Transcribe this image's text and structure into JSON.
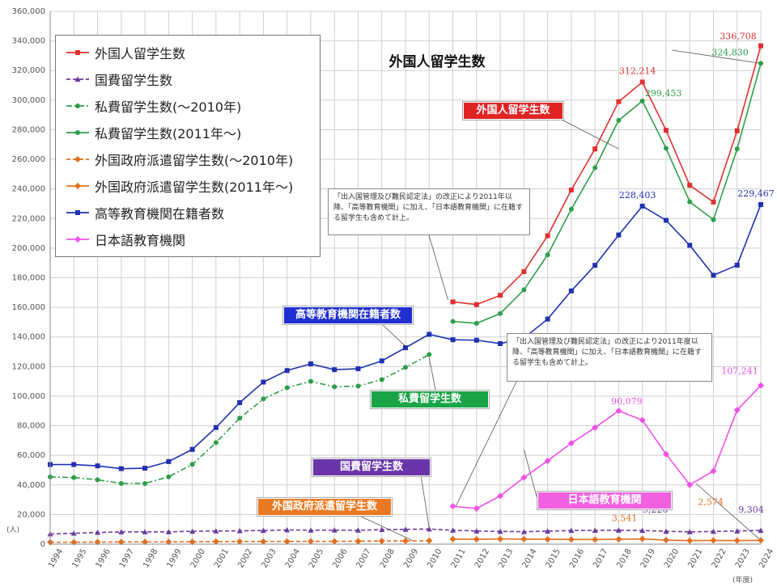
{
  "chart_data": {
    "type": "line",
    "title": "外国人留学生数",
    "unit_y": "(人)",
    "unit_x": "(年度)",
    "ylim": [
      0,
      360000
    ],
    "grid": true,
    "legend_position": "top-left",
    "x": [
      "1994",
      "1995",
      "1996",
      "1997",
      "1998",
      "1999",
      "2000",
      "2001",
      "2002",
      "2003",
      "2004",
      "2005",
      "2006",
      "2007",
      "2008",
      "2009",
      "2010",
      "2011",
      "2012",
      "2013",
      "2014",
      "2015",
      "2016",
      "2017",
      "2018",
      "2019",
      "2020",
      "2021",
      "2022",
      "2023",
      "2024"
    ],
    "y_ticks": [
      "0",
      "20,000",
      "40,000",
      "60,000",
      "80,000",
      "100,000",
      "120,000",
      "140,000",
      "160,000",
      "180,000",
      "200,000",
      "220,000",
      "240,000",
      "260,000",
      "280,000",
      "300,000",
      "320,000",
      "340,000",
      "360,000"
    ],
    "series": [
      {
        "name": "外国人留学生数",
        "color": "#e03030",
        "marker": "square",
        "dash": "solid",
        "values": [
          null,
          null,
          null,
          null,
          null,
          null,
          null,
          null,
          null,
          null,
          null,
          null,
          null,
          null,
          null,
          null,
          null,
          163697,
          161848,
          168145,
          184155,
          208379,
          239287,
          267042,
          298980,
          312214,
          279597,
          242444,
          231146,
          279274,
          336708
        ]
      },
      {
        "name": "国費留学生数",
        "color": "#6a3a9c",
        "marker": "triangle",
        "dash": "dashed",
        "values": [
          6880,
          7370,
          7900,
          8250,
          8320,
          8320,
          8700,
          8900,
          9000,
          9200,
          9600,
          9400,
          9500,
          9400,
          9800,
          10000,
          10200,
          9400,
          8900,
          8600,
          8400,
          8800,
          9200,
          9300,
          9400,
          9220,
          8700,
          8300,
          8600,
          8900,
          9304
        ]
      },
      {
        "name": "私費留学生数(〜2010年)",
        "color": "#2e9e4a",
        "marker": "circle",
        "dash": "dashdot",
        "values": [
          45400,
          45000,
          43500,
          41000,
          41000,
          45500,
          53900,
          68600,
          85100,
          98100,
          105700,
          110000,
          106300,
          106800,
          111200,
          119400,
          128100,
          null,
          null,
          null,
          null,
          null,
          null,
          null,
          null,
          null,
          null,
          null,
          null,
          null,
          null
        ]
      },
      {
        "name": "私費留学生数(2011年〜)",
        "color": "#2e9e4a",
        "marker": "circle",
        "dash": "solid",
        "values": [
          null,
          null,
          null,
          null,
          null,
          null,
          null,
          null,
          null,
          null,
          null,
          null,
          null,
          null,
          null,
          null,
          null,
          150500,
          149200,
          155800,
          171800,
          195500,
          226300,
          254300,
          286300,
          299453,
          267500,
          231300,
          219200,
          267000,
          324830
        ]
      },
      {
        "name": "外国政府派遣留学生数(〜2010年)",
        "color": "#e07020",
        "marker": "diamond",
        "dash": "dashed",
        "values": [
          1300,
          1300,
          1400,
          1500,
          1500,
          1500,
          1600,
          1700,
          1800,
          1800,
          1800,
          1900,
          1900,
          2000,
          2100,
          2200,
          2300,
          null,
          null,
          null,
          null,
          null,
          null,
          null,
          null,
          null,
          null,
          null,
          null,
          null,
          null
        ]
      },
      {
        "name": "外国政府派遣留学生数(2011年〜)",
        "color": "#e07020",
        "marker": "diamond",
        "dash": "solid",
        "values": [
          null,
          null,
          null,
          null,
          null,
          null,
          null,
          null,
          null,
          null,
          null,
          null,
          null,
          null,
          null,
          null,
          null,
          3400,
          3300,
          3500,
          3400,
          3300,
          3200,
          3100,
          3300,
          3541,
          2700,
          2400,
          2500,
          2400,
          2574
        ]
      },
      {
        "name": "高等教育機関在籍者数",
        "color": "#2030b0",
        "marker": "square",
        "dash": "solid",
        "values": [
          53800,
          53800,
          52900,
          51000,
          51300,
          55800,
          64000,
          78800,
          95600,
          109500,
          117300,
          121800,
          117900,
          118500,
          123800,
          132700,
          141800,
          138100,
          137800,
          135500,
          139200,
          152100,
          171100,
          188400,
          208900,
          228403,
          218800,
          201900,
          181700,
          188500,
          229467
        ]
      },
      {
        "name": "日本語教育機関",
        "color": "#f050e8",
        "marker": "diamond",
        "dash": "solid",
        "values": [
          null,
          null,
          null,
          null,
          null,
          null,
          null,
          null,
          null,
          null,
          null,
          null,
          null,
          null,
          null,
          null,
          null,
          25600,
          24100,
          32600,
          45000,
          56300,
          68200,
          78700,
          90079,
          83800,
          60800,
          40100,
          49400,
          90600,
          107241
        ]
      }
    ],
    "data_labels": [
      {
        "series": "外国人留学生数",
        "x": "2019",
        "text": "312,214"
      },
      {
        "series": "外国人留学生数",
        "x": "2024",
        "text": "336,708"
      },
      {
        "series": "私費留学生数(2011年〜)",
        "x": "2019",
        "text": "299,453"
      },
      {
        "series": "私費留学生数(2011年〜)",
        "x": "2024",
        "text": "324,830"
      },
      {
        "series": "高等教育機関在籍者数",
        "x": "2019",
        "text": "228,403"
      },
      {
        "series": "高等教育機関在籍者数",
        "x": "2024",
        "text": "229,467"
      },
      {
        "series": "日本語教育機関",
        "x": "2018",
        "text": "90,079"
      },
      {
        "series": "日本語教育機関",
        "x": "2024",
        "text": "107,241"
      },
      {
        "series": "外国政府派遣留学生数(2011年〜)",
        "x": "2019",
        "text": "3,541"
      },
      {
        "series": "外国政府派遣留学生数(2011年〜)",
        "x": "2024",
        "text": "2,574"
      },
      {
        "series": "国費留学生数",
        "x": "2019",
        "text": "9,220"
      },
      {
        "series": "国費留学生数",
        "x": "2024",
        "text": "9,304"
      }
    ],
    "callouts": [
      {
        "text": "外国人留学生数",
        "bg": "#e02424"
      },
      {
        "text": "高等教育機関在籍者数",
        "bg": "#1f2fd0"
      },
      {
        "text": "私費留学生数",
        "bg": "#1aa448"
      },
      {
        "text": "国費留学生数",
        "bg": "#6a35a8"
      },
      {
        "text": "外国政府派遣留学生数",
        "bg": "#ea7a22"
      },
      {
        "text": "日本語教育機関",
        "bg": "#f060e0"
      }
    ],
    "notes": [
      "「出入国管理及び難民認定法」の改正により2011年以降、「高等教育機関」に加え、「日本語教育機関」に在籍する留学生も含めて計上。",
      "「出入国管理及び難民認定法」の改正により2011年度以降、「高等教育機関」に加え、「日本語教育機関」に在籍する留学生も含めて計上。"
    ]
  }
}
